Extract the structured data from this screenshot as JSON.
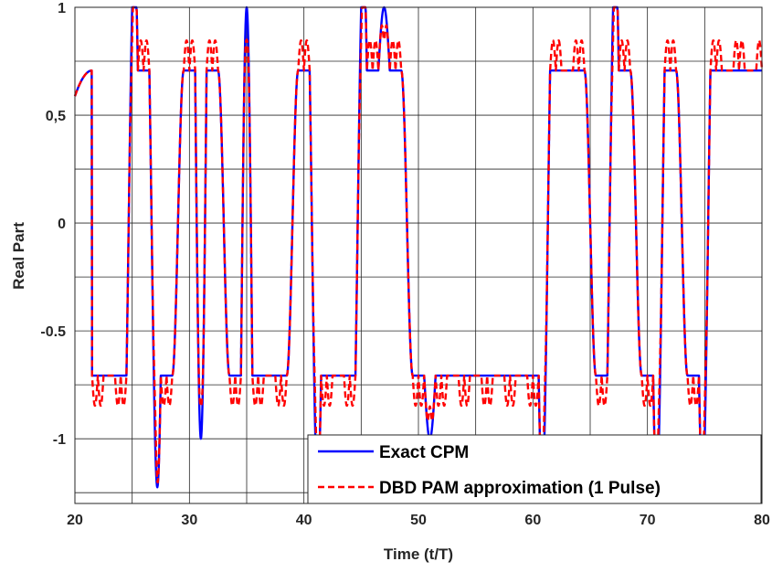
{
  "chart_data": {
    "type": "line",
    "title": "",
    "xlabel": "Time (t/T)",
    "ylabel": "Real Part",
    "xlim": [
      20,
      80
    ],
    "ylim": [
      -1.3,
      1
    ],
    "xticks": [
      20,
      30,
      40,
      50,
      60,
      70,
      80
    ],
    "xtick_labels": [
      "20",
      "30",
      "40",
      "50",
      "60",
      "70",
      "80"
    ],
    "yticks": [
      -1,
      -0.5,
      0,
      0.5,
      1
    ],
    "ytick_labels": [
      "-1",
      "-0.5",
      "0",
      "0,5",
      "1"
    ],
    "grid": true,
    "grid_x": [
      25,
      30,
      35,
      40,
      45,
      50,
      55,
      60,
      65,
      70,
      75
    ],
    "grid_y": [
      -1.25,
      -1,
      -0.75,
      -0.5,
      -0.25,
      0,
      0.25,
      0.5,
      0.75
    ],
    "legend_position": "bottom-right",
    "symbol_period": 2,
    "first_symbol_start": 21.5,
    "phase_levels": [
      -0.7071,
      -0.7071,
      0.7071,
      -0.7071,
      0.7071,
      0.7071,
      -0.7071,
      -0.7071,
      -0.7071,
      0.7071,
      -0.7071,
      -0.7071,
      0.7071,
      0.7071,
      -0.7071,
      -0.7071,
      -0.7071,
      -0.7071,
      -0.7071,
      -0.7071,
      0.7071,
      0.7071,
      -0.7071,
      0.7071,
      -0.7071,
      0.7071,
      -0.7071,
      0.7071,
      0.7071,
      0.7071
    ],
    "extrema": [
      0,
      1,
      -1,
      0,
      -1,
      0,
      1,
      0,
      0,
      -1,
      0,
      1,
      1,
      0,
      -1,
      0,
      0,
      0,
      0,
      -1,
      0,
      0,
      1,
      0,
      -1,
      0,
      -1,
      0,
      0
    ],
    "series": [
      {
        "name": "Exact CPM",
        "color": "#0000ff",
        "style": "solid"
      },
      {
        "name": "DBD PAM approximation (1 Pulse)",
        "color": "#ff0000",
        "style": "dashed"
      }
    ]
  }
}
